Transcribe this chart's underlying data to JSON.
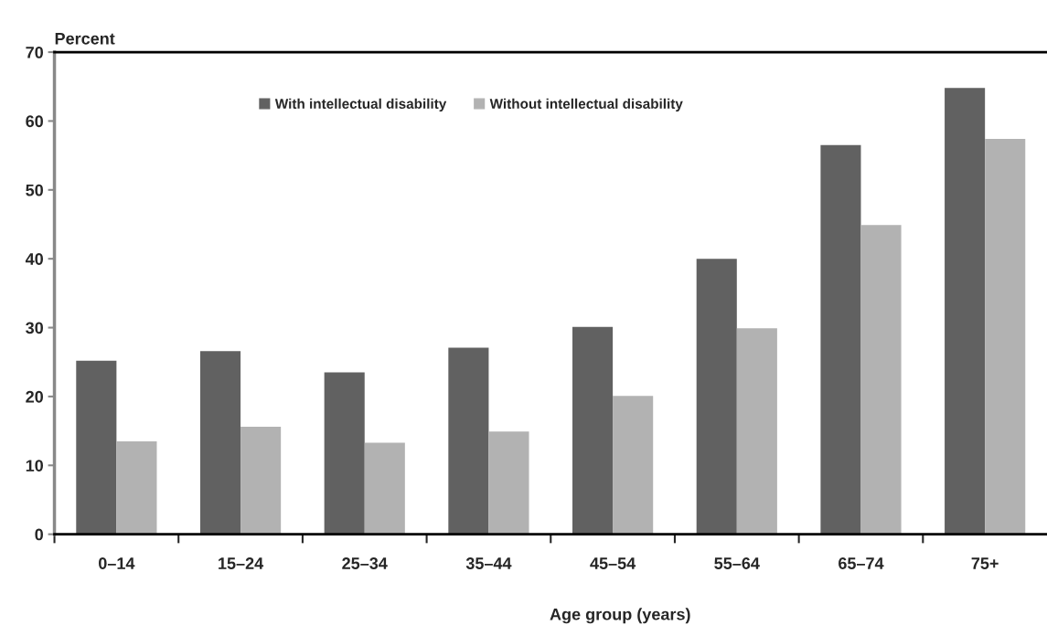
{
  "chart_data": {
    "type": "bar",
    "xlabel": "Age group (years)",
    "ylabel": "Percent",
    "categories": [
      "0–14",
      "15–24",
      "25–34",
      "35–44",
      "45–54",
      "55–64",
      "65–74",
      "75+"
    ],
    "series": [
      {
        "name": "With intellectual disability",
        "color": "#616161",
        "values": [
          25.2,
          26.6,
          23.5,
          27.1,
          30.1,
          40.0,
          56.5,
          64.8
        ]
      },
      {
        "name": "Without intellectual disability",
        "color": "#b2b2b2",
        "values": [
          13.5,
          15.6,
          13.3,
          14.9,
          20.1,
          29.9,
          44.9,
          57.4
        ]
      }
    ],
    "ylim": [
      0,
      70
    ],
    "yticks": [
      0,
      10,
      20,
      30,
      40,
      50,
      60,
      70
    ],
    "grid": false,
    "legend": "top"
  }
}
